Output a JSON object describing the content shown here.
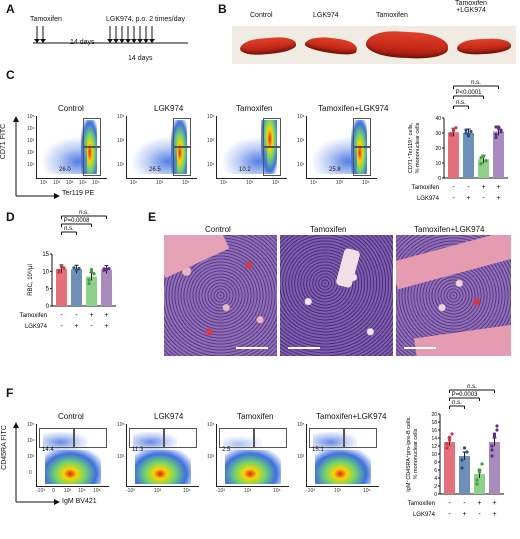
{
  "A": {
    "letter": "A",
    "tamoxifen": "Tamoxifen",
    "lgk": "LGK974, p.o. 2 times/day",
    "days1": "14 days",
    "days2": "14 days"
  },
  "B": {
    "letter": "B",
    "labels": [
      "Control",
      "LGK974",
      "Tamoxifen",
      "Tamoxifen\n+LGK974"
    ]
  },
  "C": {
    "letter": "C",
    "titles": [
      "Control",
      "LGK974",
      "Tamoxifen",
      "Tamoxifen+LGK974"
    ],
    "values": [
      "26.0",
      "26.5",
      "10.2",
      "25.8"
    ],
    "yaxis": "CD71 FITC",
    "xaxis": "Ter119 PE",
    "chart": {
      "ylabel": "CD71⁺Ter119⁺ cells,\n% mononuclear cells",
      "yticks": [
        "0",
        "10",
        "20",
        "30",
        "40"
      ],
      "bars": [
        30.5,
        30.0,
        12.5,
        31.0
      ],
      "colors": [
        "#e3707a",
        "#6e8fb7",
        "#8fd18a",
        "#a98bbd"
      ],
      "sig": [
        "n.s.",
        "P<0.0001",
        "n.s."
      ],
      "tam_row": [
        "Tamoxifen",
        "-",
        "-",
        "+",
        "+"
      ],
      "lgk_row": [
        "LGK974",
        "-",
        "+",
        "-",
        "+"
      ]
    }
  },
  "D": {
    "letter": "D",
    "chart": {
      "ylabel": "RBC, 10⁶/μl",
      "yticks": [
        "0",
        "5",
        "10",
        "15"
      ],
      "bars": [
        10.7,
        10.6,
        8.5,
        10.5
      ],
      "colors": [
        "#e3707a",
        "#6e8fb7",
        "#8fd18a",
        "#a98bbd"
      ],
      "sig": [
        "n.s.",
        "P=0.0008",
        "n.s."
      ],
      "tam_row": [
        "Tamoxifen",
        "-",
        "-",
        "+",
        "+"
      ],
      "lgk_row": [
        "LGK974",
        "-",
        "+",
        "-",
        "+"
      ]
    }
  },
  "E": {
    "letter": "E",
    "labels": [
      "Control",
      "Tamoxifen",
      "Tamoxifen+LGK974"
    ]
  },
  "F": {
    "letter": "F",
    "titles": [
      "Control",
      "LGK974",
      "Tamoxifen",
      "Tamoxifen+LGK974"
    ],
    "values": [
      "14.4",
      "11.3",
      "2.5",
      "15.1"
    ],
    "yaxis": "CD45RA FITC",
    "xaxis": "IgM BV421",
    "chart": {
      "ylabel": "IgM⁻CD45RA⁺pro-/pre-B cells,\n% mononuclear cells",
      "yticks": [
        "0",
        "2",
        "4",
        "6",
        "8",
        "10",
        "12",
        "14",
        "16",
        "18",
        "20"
      ],
      "bars": [
        13.0,
        9.5,
        5.0,
        13.0
      ],
      "colors": [
        "#e3707a",
        "#6e8fb7",
        "#8fd18a",
        "#a98bbd"
      ],
      "sig": [
        "n.s.",
        "P=0.0003",
        "n.s."
      ],
      "tam_row": [
        "Tamoxifen",
        "-",
        "-",
        "+",
        "+"
      ],
      "lgk_row": [
        "LGK974",
        "-",
        "+",
        "-",
        "+"
      ]
    }
  },
  "facs_ticks": {
    "c_y": [
      "10⁵",
      "10⁴",
      "10³",
      "10²",
      "10¹",
      "0"
    ],
    "c_x": [
      "10¹",
      "10²",
      "10³",
      "10⁴",
      "10⁵"
    ],
    "f_y": [
      "10⁵",
      "10⁴",
      "10³",
      "0"
    ],
    "f_x": [
      "-10³",
      "0",
      "10³",
      "10⁴",
      "10⁵"
    ]
  }
}
